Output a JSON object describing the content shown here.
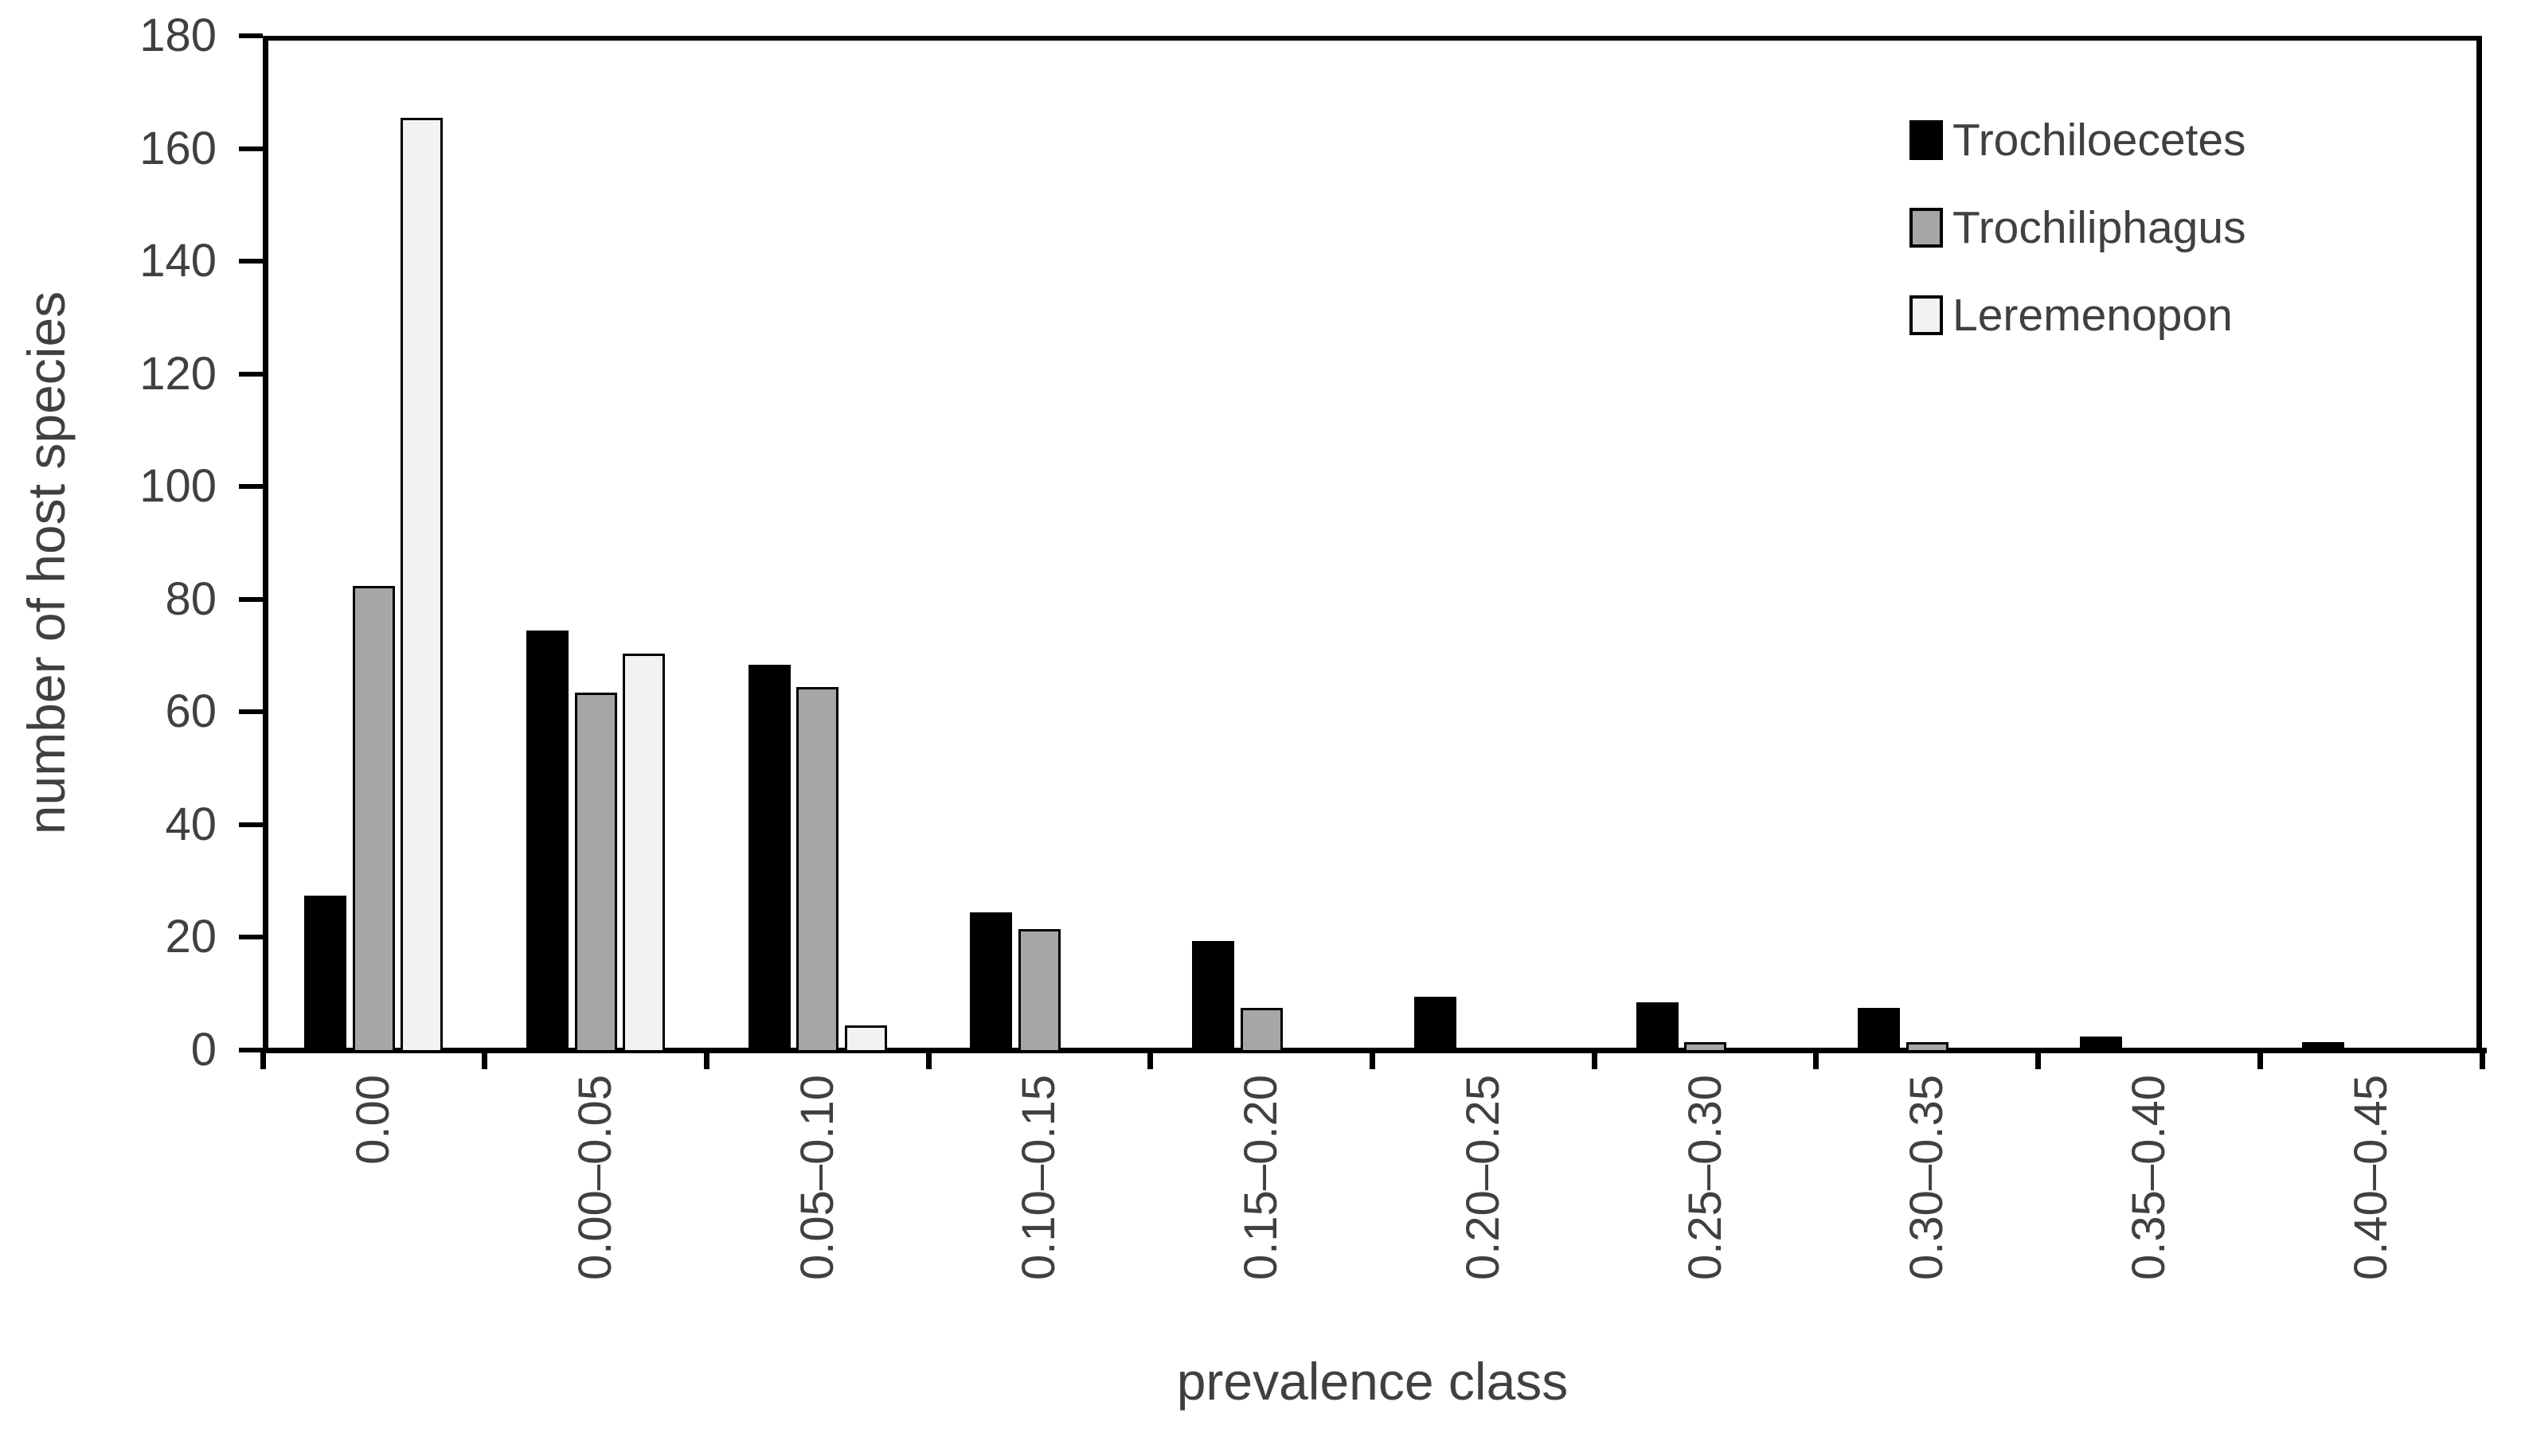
{
  "chart_data": {
    "type": "bar",
    "title": "",
    "xlabel": "prevalence class",
    "ylabel": "number of host species",
    "categories": [
      "0.00",
      "0.00–0.05",
      "0.05–0.10",
      "0.10–0.15",
      "0.15–0.20",
      "0.20–0.25",
      "0.25–0.30",
      "0.30–0.35",
      "0.35–0.40",
      "0.40–0.45"
    ],
    "series": [
      {
        "name": "Trochiloecetes",
        "color": "#000000",
        "values": [
          27,
          74,
          68,
          24,
          19,
          9,
          8,
          7,
          2,
          1
        ]
      },
      {
        "name": "Trochiliphagus",
        "color": "#a6a6a6",
        "values": [
          82,
          63,
          64,
          21,
          7,
          0,
          1,
          1,
          0,
          0
        ]
      },
      {
        "name": "Leremenopon",
        "color": "#f2f2f2",
        "values": [
          165,
          70,
          4,
          0,
          0,
          0,
          0,
          0,
          0,
          0
        ]
      }
    ],
    "ylim": [
      0,
      180
    ],
    "ytick_step": 20,
    "yticks": [
      "0",
      "20",
      "40",
      "60",
      "80",
      "100",
      "120",
      "140",
      "160",
      "180"
    ],
    "grid": false,
    "legend_position": "top-right",
    "bar_border_color": "#000000",
    "axis_color": "#000000",
    "text_color": "#404040",
    "background_color": "#ffffff"
  }
}
